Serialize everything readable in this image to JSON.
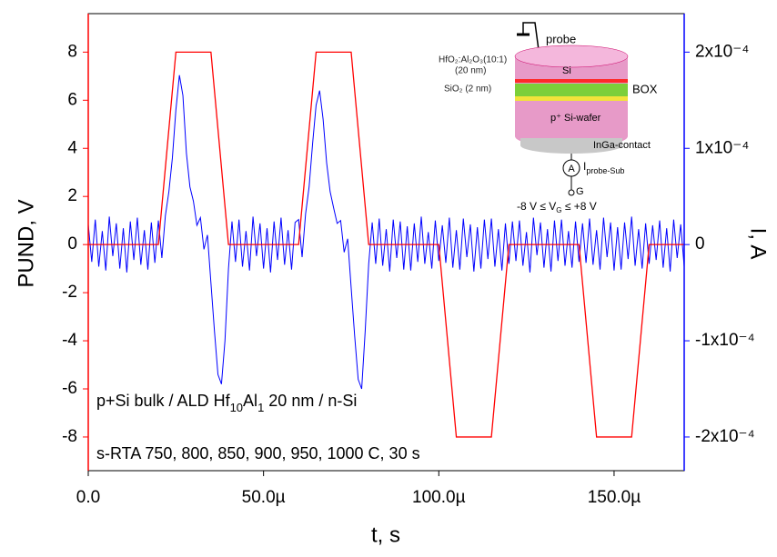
{
  "chart_data": {
    "type": "line",
    "xlabel": "t, s",
    "ylabel": "PUND, V",
    "y2label": "I, A",
    "xlim": [
      0,
      0.00017
    ],
    "ylim": [
      -9.4,
      9.6
    ],
    "y2lim": [
      -0.000235,
      0.00024
    ],
    "xticks": [
      {
        "value": 0,
        "label": "0.0"
      },
      {
        "value": 5e-05,
        "label": "50.0µ"
      },
      {
        "value": 0.0001,
        "label": "100.0µ"
      },
      {
        "value": 0.00015,
        "label": "150.0µ"
      }
    ],
    "yticks": [
      -8,
      -6,
      -4,
      -2,
      0,
      2,
      4,
      6,
      8
    ],
    "y2ticks": [
      {
        "value": -0.0002,
        "label": "-2x10⁻⁴"
      },
      {
        "value": -0.0001,
        "label": "-1x10⁻⁴"
      },
      0,
      {
        "value": 0.0001,
        "label": "1x10⁻⁴"
      },
      {
        "value": 0.0002,
        "label": "2x10⁻⁴"
      }
    ],
    "grid": false,
    "annotations": [
      [
        "p+Si bulk / ALD Hf",
        "10",
        "Al",
        "1",
        " 20 nm / n-Si"
      ],
      [
        "s-RTA 750, 800, 850, 900, 950, 1000 C, 30 s"
      ]
    ],
    "series": [
      {
        "color": "#0000ff",
        "axis": "y2",
        "x": [
          0,
          1e-06,
          2e-06,
          3e-06,
          4e-06,
          5e-06,
          6e-06,
          7e-06,
          8e-06,
          9e-06,
          1e-05,
          1.1e-05,
          1.2e-05,
          1.3e-05,
          1.4e-05,
          1.5e-05,
          1.6e-05,
          1.7e-05,
          1.8e-05,
          1.9e-05,
          2e-05,
          2.1e-05,
          2.2e-05,
          2.3e-05,
          2.4e-05,
          2.5e-05,
          2.6e-05,
          2.7e-05,
          2.8e-05,
          2.9e-05,
          3e-05,
          3.1e-05,
          3.2e-05,
          3.3e-05,
          3.4e-05,
          3.5e-05,
          3.6e-05,
          3.7e-05,
          3.8e-05,
          3.9e-05,
          4e-05,
          4.1e-05,
          4.2e-05,
          4.3e-05,
          4.4e-05,
          4.5e-05,
          4.6e-05,
          4.7e-05,
          4.8e-05,
          4.9e-05,
          5e-05,
          5.1e-05,
          5.2e-05,
          5.3e-05,
          5.4e-05,
          5.5e-05,
          5.6e-05,
          5.7e-05,
          5.8e-05,
          5.9e-05,
          6e-05,
          6.1e-05,
          6.2e-05,
          6.3e-05,
          6.4e-05,
          6.5e-05,
          6.6e-05,
          6.7e-05,
          6.8e-05,
          6.9e-05,
          7e-05,
          7.1e-05,
          7.2e-05,
          7.3e-05,
          7.4e-05,
          7.5e-05,
          7.6e-05,
          7.7e-05,
          7.8e-05,
          7.9e-05,
          8e-05,
          8.1e-05,
          8.2e-05,
          8.3e-05,
          8.4e-05,
          8.5e-05,
          8.6e-05,
          8.7e-05,
          8.8e-05,
          8.9e-05,
          9e-05,
          9.1e-05,
          9.2e-05,
          9.3e-05,
          9.4e-05,
          9.5e-05,
          9.6e-05,
          9.7e-05,
          9.8e-05,
          9.9e-05,
          0.0001,
          0.000101,
          0.000102,
          0.000103,
          0.000104,
          0.000105,
          0.000106,
          0.000107,
          0.000108,
          0.000109,
          0.00011,
          0.000111,
          0.000112,
          0.000113,
          0.000114,
          0.000115,
          0.000116,
          0.000117,
          0.000118,
          0.000119,
          0.00012,
          0.000121,
          0.000122,
          0.000123,
          0.000124,
          0.000125,
          0.000126,
          0.000127,
          0.000128,
          0.000129,
          0.00013,
          0.000131,
          0.000132,
          0.000133,
          0.000134,
          0.000135,
          0.000136,
          0.000137,
          0.000138,
          0.000139,
          0.00014,
          0.000141,
          0.000142,
          0.000143,
          0.000144,
          0.000145,
          0.000146,
          0.000147,
          0.000148,
          0.000149,
          0.00015,
          0.000151,
          0.000152,
          0.000153,
          0.000154,
          0.000155,
          0.000156,
          0.000157,
          0.000158,
          0.000159,
          0.00016,
          0.000161,
          0.000162,
          0.000163,
          0.000164,
          0.000165,
          0.000166,
          0.000167,
          0.000168,
          0.000169,
          0.00017
        ],
        "values": [
          2.1e-05,
          -1.8e-05,
          2.6e-05,
          -2.3e-05,
          1.4e-05,
          -2.7e-05,
          2.9e-05,
          -1.2e-05,
          2.2e-05,
          -2.5e-05,
          1.7e-05,
          -2.9e-05,
          2.4e-05,
          -1.6e-05,
          2.8e-05,
          -2.1e-05,
          1.5e-05,
          -2.6e-05,
          2.3e-05,
          -1.9e-05,
          2.5e-05,
          -1.4e-05,
          3e-05,
          5.5e-05,
          9e-05,
          0.00014,
          0.000176,
          0.000155,
          9.5e-05,
          6e-05,
          4.5e-05,
          2e-05,
          2.8e-05,
          -5e-06,
          1e-05,
          -4e-05,
          -9e-05,
          -0.000135,
          -0.000145,
          -0.0001,
          -2.5e-05,
          2.4e-05,
          -1.8e-05,
          2.6e-05,
          -2.3e-05,
          1.4e-05,
          -2.7e-05,
          2.9e-05,
          -1.2e-05,
          2.2e-05,
          -2.5e-05,
          1.7e-05,
          -2.9e-05,
          2.4e-05,
          -1.6e-05,
          2.8e-05,
          -2.1e-05,
          1.5e-05,
          -2.6e-05,
          2.3e-05,
          2.6e-05,
          -1.3e-05,
          3.2e-05,
          6e-05,
          0.000105,
          0.000145,
          0.00016,
          0.00013,
          8.5e-05,
          5.5e-05,
          3.8e-05,
          2.2e-05,
          2.5e-05,
          -8e-06,
          6e-06,
          -4.5e-05,
          -9.5e-05,
          -0.00014,
          -0.00015,
          -9e-05,
          -2e-05,
          2.3e-05,
          -2e-05,
          2.7e-05,
          -2.2e-05,
          1.6e-05,
          -2.8e-05,
          2.6e-05,
          -1.4e-05,
          2.4e-05,
          -2.6e-05,
          1.9e-05,
          -2.7e-05,
          2.2e-05,
          -1.8e-05,
          2.9e-05,
          -2e-05,
          1.3e-05,
          -2.5e-05,
          2.5e-05,
          -1.7e-05,
          2e-05,
          -1.9e-05,
          2.8e-05,
          -2.4e-05,
          1.5e-05,
          -2.6e-05,
          2.7e-05,
          -1.3e-05,
          2.1e-05,
          -2.8e-05,
          1.8e-05,
          -2.5e-05,
          2.6e-05,
          -1.5e-05,
          2.7e-05,
          -2.3e-05,
          1.6e-05,
          -2.7e-05,
          2.2e-05,
          -2e-05,
          2.4e-05,
          -1.7e-05,
          2.5e-05,
          -2.2e-05,
          1.3e-05,
          -2.9e-05,
          2.8e-05,
          -1.1e-05,
          2.3e-05,
          -2.4e-05,
          1.6e-05,
          -2.8e-05,
          2.5e-05,
          -1.7e-05,
          2.6e-05,
          -2.2e-05,
          1.4e-05,
          -2.4e-05,
          2.4e-05,
          -1.8e-05,
          2.2e-05,
          -1.9e-05,
          2.7e-05,
          -2.1e-05,
          1.5e-05,
          -2.6e-05,
          2.8e-05,
          -1.3e-05,
          2.3e-05,
          -2.7e-05,
          1.8e-05,
          -2.6e-05,
          2.3e-05,
          -1.5e-05,
          2.9e-05,
          -2.2e-05,
          1.6e-05,
          -2.5e-05,
          2.2e-05,
          -2e-05,
          2e-05,
          -1.6e-05,
          2.5e-05,
          -2.4e-05,
          1.7e-05,
          -2.8e-05,
          2.6e-05,
          -1.4e-05,
          2.1e-05,
          -2.3e-05
        ]
      },
      {
        "color": "#ff0000",
        "axis": "y",
        "x": [
          0,
          2e-05,
          2.5e-05,
          3.5e-05,
          4e-05,
          6e-05,
          6.5e-05,
          7.5e-05,
          8e-05,
          0.0001,
          0.000105,
          0.000115,
          0.00012,
          0.00014,
          0.000145,
          0.000155,
          0.00016,
          0.00017
        ],
        "values": [
          0,
          0,
          8,
          8,
          0,
          0,
          8,
          8,
          0,
          0,
          -8,
          -8,
          0,
          0,
          -8,
          -8,
          0,
          0
        ]
      }
    ]
  },
  "inset": {
    "probe": "probe",
    "hfo": "HfO₂:Al₂O₃(10:1)",
    "hfo_thick": "(20 nm)",
    "sio2": "SiO₂ (2 nm)",
    "si": "Si",
    "box": "BOX",
    "wafer": "p⁺ Si-wafer",
    "contact": "InGa-contact",
    "ammeter": "A",
    "current": "I",
    "current_sub": "probe-Sub",
    "gate": "G",
    "range": [
      "-8 V ≤ V",
      "G",
      " ≤ +8 V"
    ]
  }
}
